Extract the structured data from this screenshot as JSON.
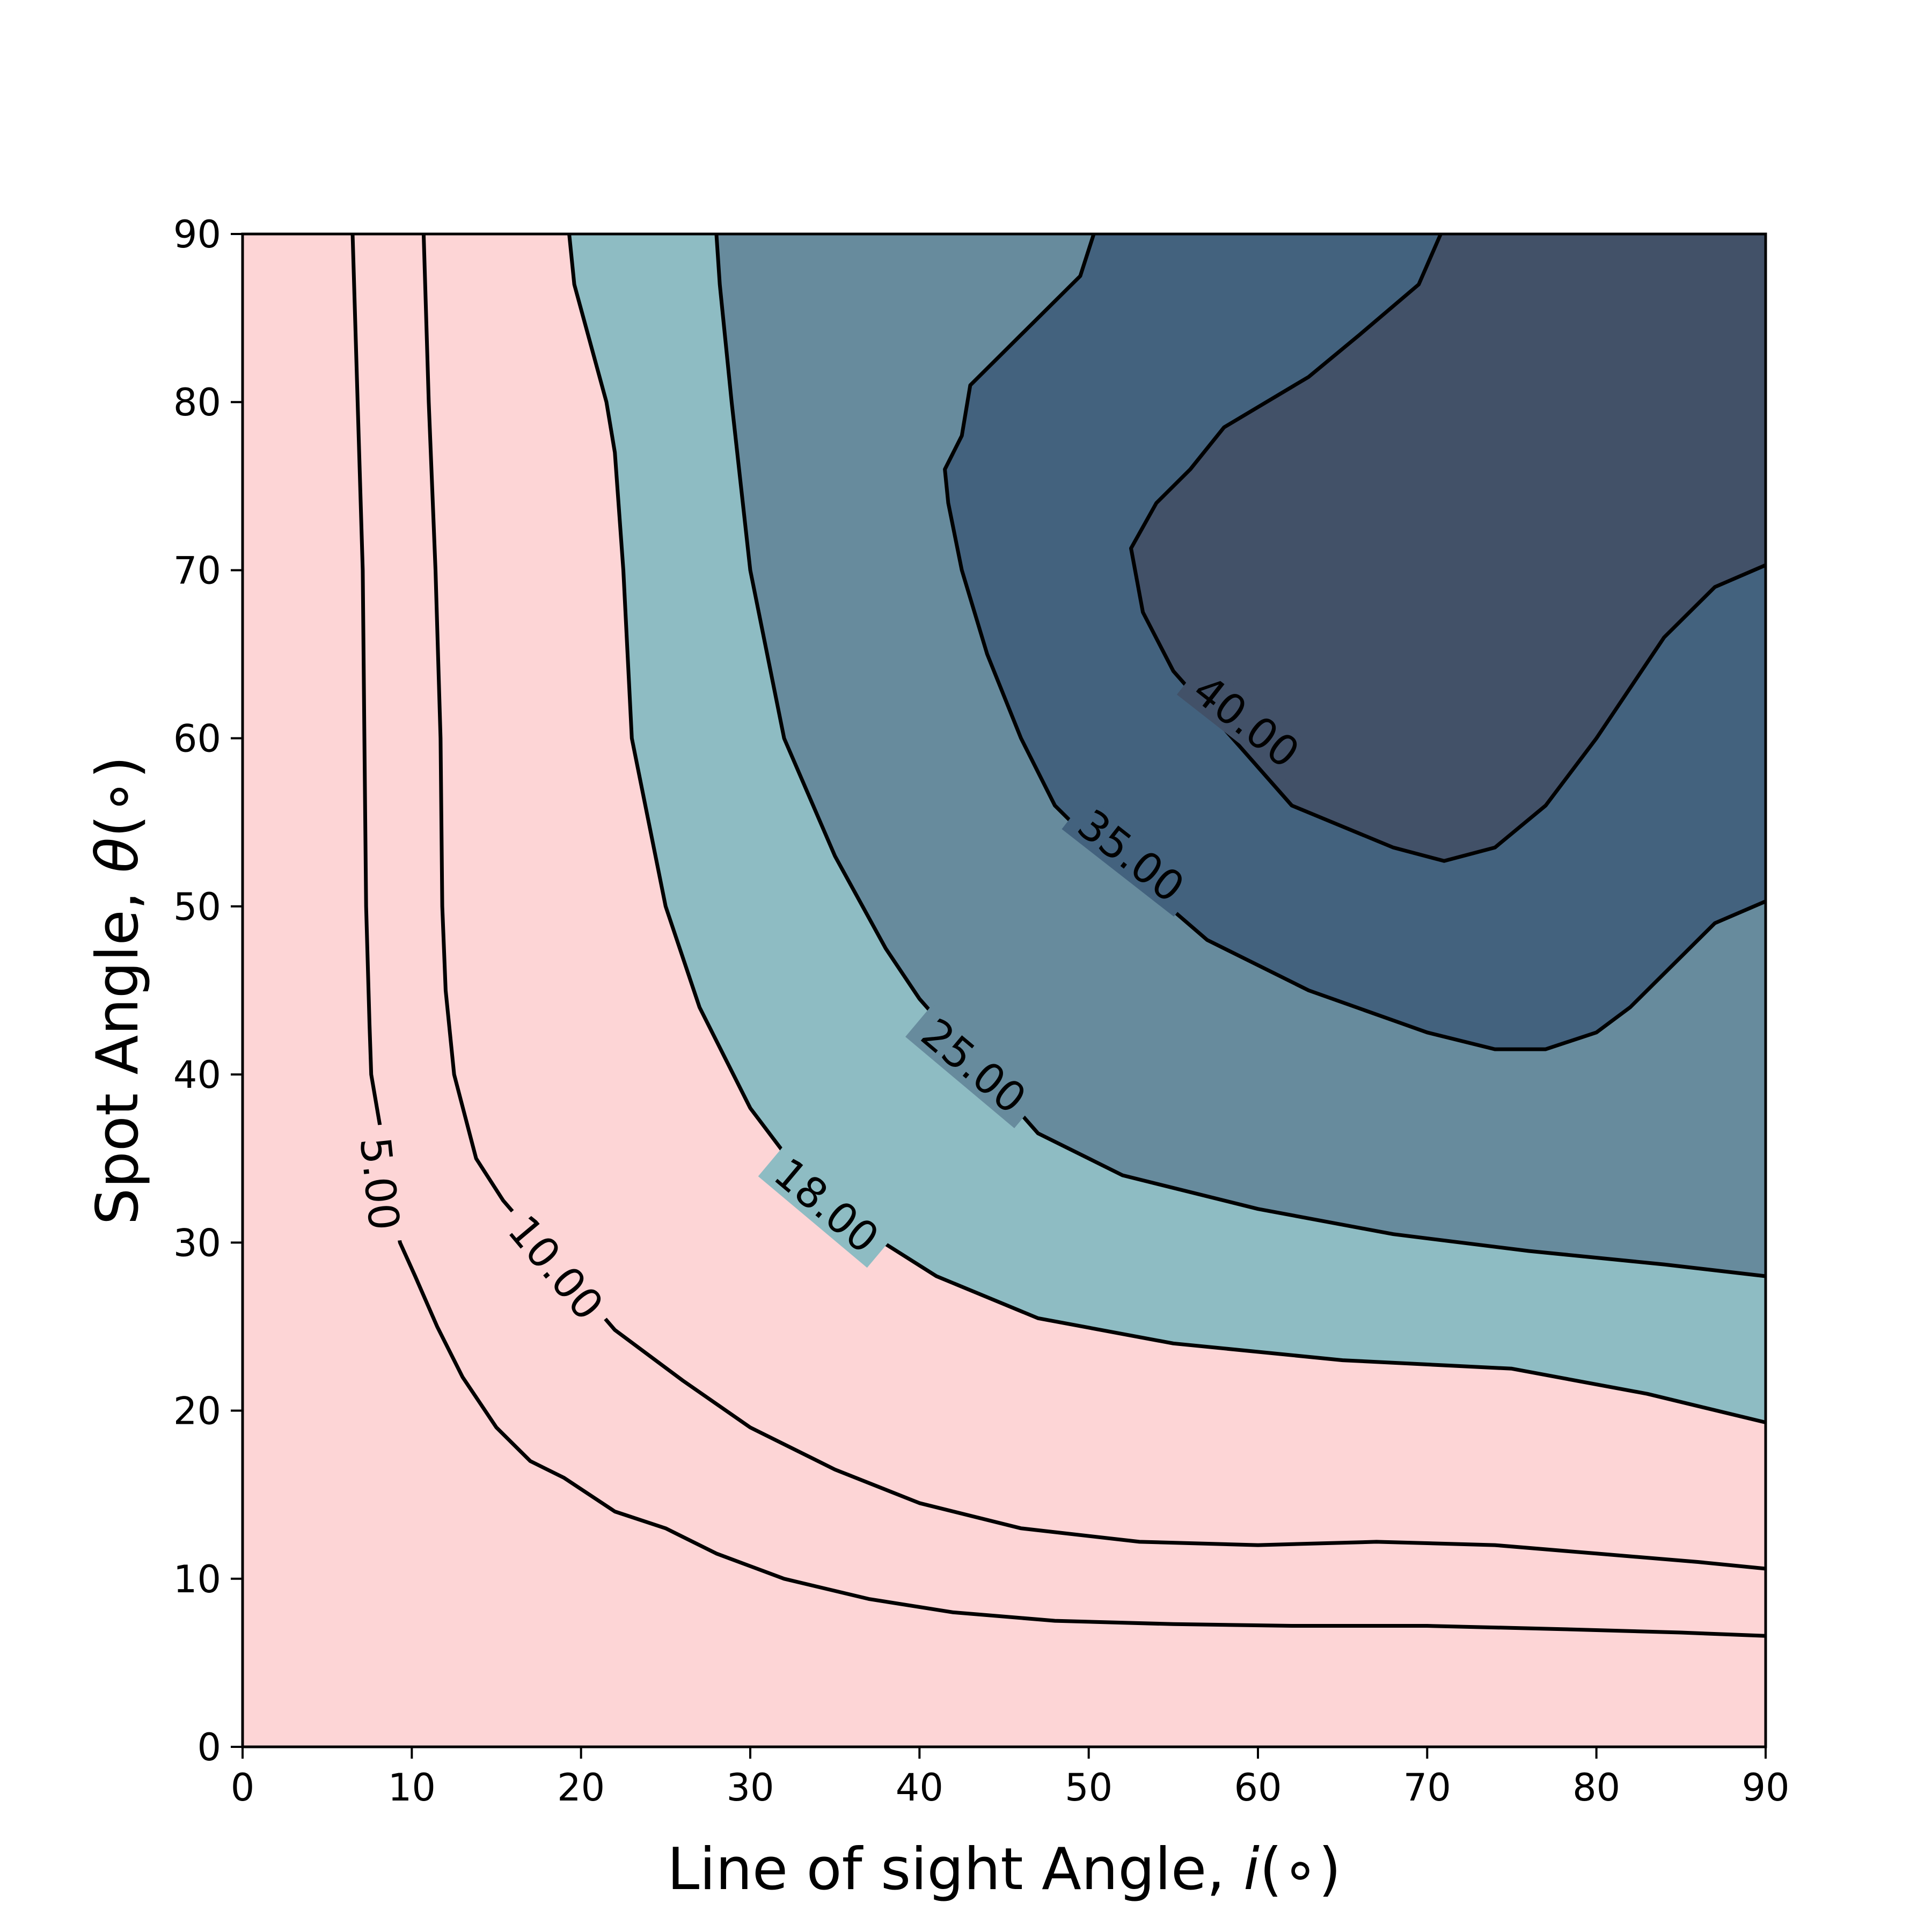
{
  "chart_data": {
    "type": "contour",
    "xlabel": {
      "prefix": "Line of sight Angle, ",
      "symbol": "i",
      "suffix": "(∘)"
    },
    "ylabel": {
      "prefix": "Spot Angle, ",
      "symbol": "θ",
      "suffix": "(∘)"
    },
    "xlim": [
      0,
      90
    ],
    "ylim": [
      0,
      90
    ],
    "xticks": [
      0,
      10,
      20,
      30,
      40,
      50,
      60,
      70,
      80,
      90
    ],
    "yticks": [
      0,
      10,
      20,
      30,
      40,
      50,
      60,
      70,
      80,
      90
    ],
    "grid": false,
    "filled_levels": [
      {
        "range": "< 18",
        "color": "#fdd5d6"
      },
      {
        "range": "18–25",
        "color": "#8ebcc3"
      },
      {
        "range": "25–35",
        "color": "#678b9d"
      },
      {
        "range": "35–40",
        "color": "#43627e"
      },
      {
        "range": "> 40",
        "color": "#425168"
      }
    ],
    "contours": [
      {
        "level": 5,
        "label": "5.00",
        "label_at": [
          8.1,
          33.5
        ],
        "label_angle": 84,
        "points": [
          [
            6.5,
            90
          ],
          [
            6.8,
            80
          ],
          [
            7.1,
            70
          ],
          [
            7.2,
            60
          ],
          [
            7.3,
            50
          ],
          [
            7.5,
            43
          ],
          [
            7.6,
            40
          ],
          [
            9.3,
            30
          ],
          [
            10.2,
            28
          ],
          [
            11.5,
            25
          ],
          [
            13,
            22
          ],
          [
            15,
            19
          ],
          [
            17,
            17
          ],
          [
            19,
            16
          ],
          [
            22,
            14
          ],
          [
            25,
            13
          ],
          [
            28,
            11.5
          ],
          [
            32,
            10
          ],
          [
            37,
            8.8
          ],
          [
            42,
            8
          ],
          [
            48,
            7.5
          ],
          [
            55,
            7.3
          ],
          [
            62,
            7.2
          ],
          [
            70,
            7.2
          ],
          [
            78,
            7
          ],
          [
            85,
            6.8
          ],
          [
            90,
            6.6
          ]
        ]
      },
      {
        "level": 10,
        "label": "10.00",
        "label_at": [
          18.5,
          28.5
        ],
        "label_angle": 50,
        "points": [
          [
            10.7,
            90
          ],
          [
            11.0,
            80
          ],
          [
            11.4,
            70
          ],
          [
            11.7,
            60
          ],
          [
            11.8,
            50
          ],
          [
            12.0,
            45
          ],
          [
            12.5,
            40
          ],
          [
            13.8,
            35
          ],
          [
            15.4,
            32.5
          ],
          [
            22,
            24.8
          ],
          [
            26,
            21.8
          ],
          [
            30,
            19
          ],
          [
            35,
            16.5
          ],
          [
            40,
            14.5
          ],
          [
            46,
            13
          ],
          [
            53,
            12.2
          ],
          [
            60,
            12
          ],
          [
            67,
            12.2
          ],
          [
            74,
            12
          ],
          [
            80,
            11.5
          ],
          [
            86,
            11
          ],
          [
            90,
            10.6
          ]
        ]
      },
      {
        "level": 18,
        "label": "18.00",
        "label_at": [
          34.5,
          32.2
        ],
        "label_angle": 40,
        "points": [
          [
            19.3,
            90
          ],
          [
            19.6,
            87
          ],
          [
            21.5,
            80
          ],
          [
            22,
            77
          ],
          [
            22.5,
            70
          ],
          [
            23,
            60
          ],
          [
            25,
            50
          ],
          [
            27,
            44
          ],
          [
            30,
            38
          ],
          [
            33,
            34
          ],
          [
            35.5,
            31.5
          ],
          [
            41,
            28
          ],
          [
            47,
            25.5
          ],
          [
            55,
            24
          ],
          [
            65,
            23
          ],
          [
            75,
            22.5
          ],
          [
            83,
            21
          ],
          [
            90,
            19.3
          ]
        ]
      },
      {
        "level": 25,
        "label": "25.00",
        "label_at": [
          43.2,
          40.5
        ],
        "label_angle": 40,
        "points": [
          [
            28,
            90
          ],
          [
            28.2,
            87
          ],
          [
            28.9,
            80
          ],
          [
            30,
            70
          ],
          [
            32,
            60
          ],
          [
            35,
            53
          ],
          [
            38,
            47.5
          ],
          [
            40,
            44.5
          ],
          [
            47,
            36.5
          ],
          [
            52,
            34
          ],
          [
            60,
            32
          ],
          [
            68,
            30.5
          ],
          [
            76,
            29.5
          ],
          [
            84,
            28.7
          ],
          [
            90,
            28
          ]
        ]
      },
      {
        "level": 35,
        "label": "35.00",
        "label_at": [
          52.5,
          53
        ],
        "label_angle": 38,
        "points": [
          [
            50.3,
            90
          ],
          [
            49.5,
            87.5
          ],
          [
            46,
            84
          ],
          [
            43,
            81
          ],
          [
            42.5,
            78
          ],
          [
            41.5,
            76
          ],
          [
            41.7,
            74
          ],
          [
            42.5,
            70
          ],
          [
            44,
            65
          ],
          [
            46,
            60
          ],
          [
            48,
            56
          ],
          [
            49.5,
            54.5
          ],
          [
            57,
            48
          ],
          [
            63,
            45
          ],
          [
            70,
            42.5
          ],
          [
            74,
            41.5
          ],
          [
            77,
            41.5
          ],
          [
            80,
            42.5
          ],
          [
            82,
            44
          ],
          [
            85,
            47
          ],
          [
            87,
            49
          ],
          [
            90,
            50.3
          ]
        ]
      },
      {
        "level": 40,
        "label": "40.00",
        "label_at": [
          59.3,
          61
        ],
        "label_angle": 38,
        "points": [
          [
            70.8,
            90
          ],
          [
            69.5,
            87
          ],
          [
            66,
            84
          ],
          [
            63,
            81.5
          ],
          [
            58,
            78.5
          ],
          [
            56,
            76
          ],
          [
            54,
            74
          ],
          [
            52.5,
            71.3
          ],
          [
            53.2,
            67.5
          ],
          [
            55,
            64
          ],
          [
            62,
            56
          ],
          [
            68,
            53.5
          ],
          [
            71,
            52.7
          ],
          [
            74,
            53.5
          ],
          [
            77,
            56
          ],
          [
            80,
            60
          ],
          [
            84,
            66
          ],
          [
            87,
            69
          ],
          [
            90,
            70.3
          ]
        ]
      }
    ]
  }
}
